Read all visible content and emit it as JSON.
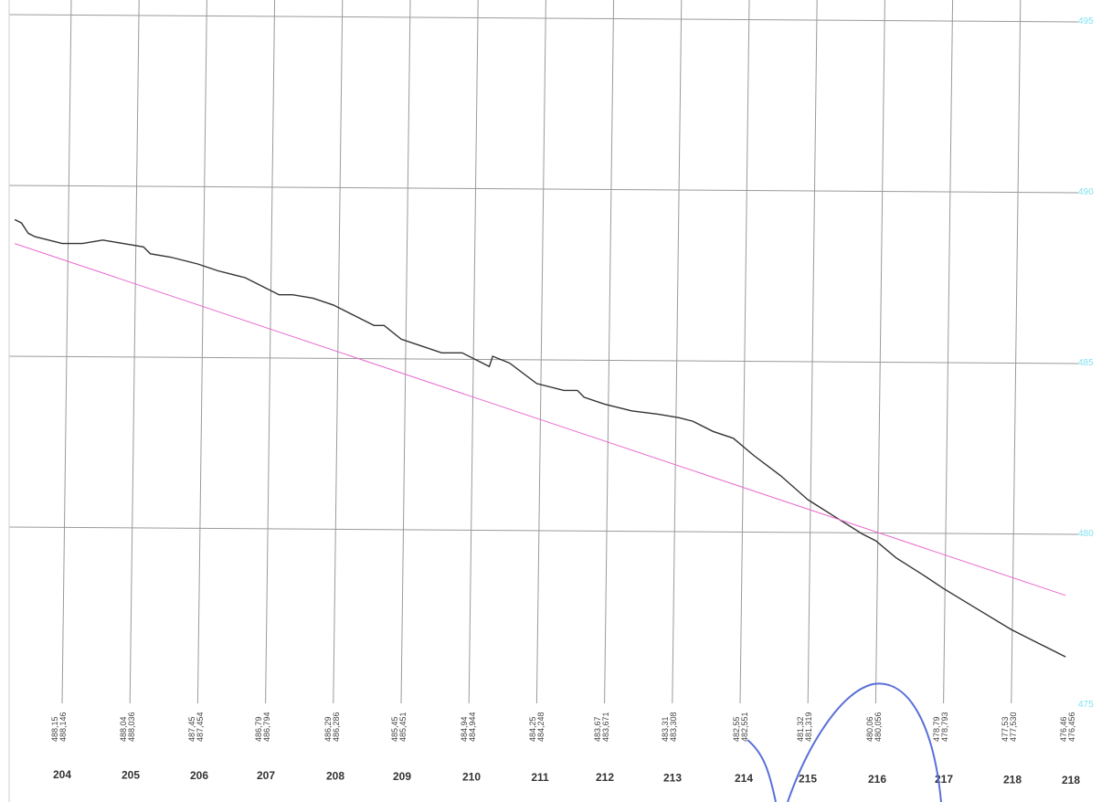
{
  "chart_data": {
    "type": "line",
    "ylim": [
      475,
      495
    ],
    "y_ticks": [
      "495",
      "490",
      "485",
      "480",
      "475"
    ],
    "grid": true,
    "stations": [
      "204",
      "205",
      "206",
      "207",
      "208",
      "209",
      "210",
      "211",
      "212",
      "213",
      "214",
      "215",
      "216",
      "217",
      "218",
      "218"
    ],
    "value_labels": [
      [
        "488,15",
        "488,146"
      ],
      [
        "488,04",
        "488,036"
      ],
      [
        "487,45",
        "487,454"
      ],
      [
        "486,79",
        "486,794"
      ],
      [
        "486,29",
        "486,286"
      ],
      [
        "485,45",
        "485,451"
      ],
      [
        "484,94",
        "484,944"
      ],
      [
        "484,25",
        "484,248"
      ],
      [
        "483,67",
        "483,671"
      ],
      [
        "483,31",
        "483,308"
      ],
      [
        "482,55",
        "482,551"
      ],
      [
        "481,32",
        "481,319"
      ],
      [
        "480,06",
        "480,056"
      ],
      [
        "478,79",
        "478,793"
      ],
      [
        "477,53",
        "477,530"
      ],
      [
        "476,46",
        "476,456"
      ]
    ],
    "series": [
      {
        "color": "#333333",
        "points": [
          [
            203.3,
            489.0
          ],
          [
            203.4,
            488.9
          ],
          [
            203.5,
            488.6
          ],
          [
            203.6,
            488.5
          ],
          [
            203.8,
            488.4
          ],
          [
            204.0,
            488.3
          ],
          [
            204.3,
            488.3
          ],
          [
            204.6,
            488.4
          ],
          [
            204.9,
            488.3
          ],
          [
            205.2,
            488.2
          ],
          [
            205.3,
            488.0
          ],
          [
            205.6,
            487.9
          ],
          [
            206.0,
            487.7
          ],
          [
            206.3,
            487.5
          ],
          [
            206.7,
            487.3
          ],
          [
            207.0,
            487.0
          ],
          [
            207.2,
            486.8
          ],
          [
            207.4,
            486.8
          ],
          [
            207.7,
            486.7
          ],
          [
            208.0,
            486.5
          ],
          [
            208.3,
            486.2
          ],
          [
            208.6,
            485.9
          ],
          [
            208.75,
            485.9
          ],
          [
            209.0,
            485.5
          ],
          [
            209.3,
            485.3
          ],
          [
            209.6,
            485.1
          ],
          [
            209.9,
            485.1
          ],
          [
            210.1,
            484.9
          ],
          [
            210.3,
            484.7
          ],
          [
            210.35,
            485.0
          ],
          [
            210.6,
            484.8
          ],
          [
            211.0,
            484.2
          ],
          [
            211.4,
            484.0
          ],
          [
            211.6,
            484.0
          ],
          [
            211.7,
            483.8
          ],
          [
            212.0,
            483.6
          ],
          [
            212.4,
            483.4
          ],
          [
            212.8,
            483.3
          ],
          [
            213.1,
            483.2
          ],
          [
            213.3,
            483.1
          ],
          [
            213.6,
            482.8
          ],
          [
            213.9,
            482.6
          ],
          [
            214.2,
            482.1
          ],
          [
            214.6,
            481.5
          ],
          [
            215.0,
            480.8
          ],
          [
            215.4,
            480.3
          ],
          [
            215.8,
            479.8
          ],
          [
            216.0,
            479.6
          ],
          [
            216.3,
            479.1
          ],
          [
            216.7,
            478.6
          ],
          [
            217.0,
            478.2
          ],
          [
            217.5,
            477.6
          ],
          [
            218.0,
            477.0
          ],
          [
            218.4,
            476.6
          ],
          [
            218.8,
            476.2
          ]
        ]
      },
      {
        "color": "#e86ad0",
        "points": [
          [
            203.3,
            488.3
          ],
          [
            218.8,
            478.0
          ]
        ]
      }
    ]
  }
}
